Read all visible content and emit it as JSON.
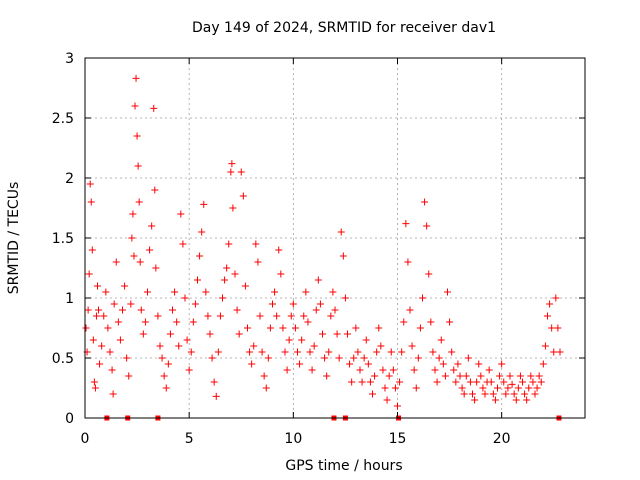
{
  "chart_data": {
    "type": "scatter",
    "title": "Day 149 of 2024, SRMTID for receiver dav1",
    "xlabel": "GPS time / hours",
    "ylabel": "SRMTID / TECUs",
    "xlim": [
      0,
      24
    ],
    "ylim": [
      0,
      3
    ],
    "xticks": [
      0,
      5,
      10,
      15,
      20
    ],
    "xtick_labels": [
      "0",
      "5",
      "10",
      "15",
      "20"
    ],
    "yticks": [
      0,
      0.5,
      1,
      1.5,
      2,
      2.5,
      3
    ],
    "ytick_labels": [
      "0",
      "0.5",
      "1",
      "1.5",
      "2",
      "2.5",
      "3"
    ],
    "grid": true,
    "marker": "+",
    "color": "#ff0000",
    "series": [
      {
        "name": "SRMTID",
        "points": [
          [
            0.05,
            0.75
          ],
          [
            0.1,
            0.55
          ],
          [
            0.15,
            0.9
          ],
          [
            0.2,
            1.2
          ],
          [
            0.25,
            1.95
          ],
          [
            0.3,
            1.8
          ],
          [
            0.35,
            1.4
          ],
          [
            0.4,
            0.65
          ],
          [
            0.45,
            0.3
          ],
          [
            0.5,
            0.25
          ],
          [
            0.55,
            0.85
          ],
          [
            0.6,
            1.1
          ],
          [
            0.65,
            0.9
          ],
          [
            0.7,
            0.45
          ],
          [
            0.8,
            0.6
          ],
          [
            0.9,
            0.85
          ],
          [
            1.0,
            1.05
          ],
          [
            1.1,
            0.75
          ],
          [
            1.2,
            0.55
          ],
          [
            1.3,
            0.4
          ],
          [
            1.35,
            0.2
          ],
          [
            1.4,
            0.95
          ],
          [
            1.5,
            1.3
          ],
          [
            1.6,
            0.8
          ],
          [
            1.7,
            0.65
          ],
          [
            1.8,
            0.9
          ],
          [
            1.9,
            1.1
          ],
          [
            2.0,
            0.5
          ],
          [
            2.1,
            0.35
          ],
          [
            2.2,
            0.95
          ],
          [
            2.25,
            1.5
          ],
          [
            2.3,
            1.7
          ],
          [
            2.35,
            1.35
          ],
          [
            2.4,
            2.6
          ],
          [
            2.45,
            2.83
          ],
          [
            2.5,
            2.35
          ],
          [
            2.55,
            2.1
          ],
          [
            2.6,
            1.8
          ],
          [
            2.65,
            1.3
          ],
          [
            2.7,
            0.9
          ],
          [
            2.8,
            0.7
          ],
          [
            2.9,
            0.8
          ],
          [
            3.0,
            1.05
          ],
          [
            3.1,
            1.4
          ],
          [
            3.2,
            1.6
          ],
          [
            3.3,
            2.58
          ],
          [
            3.35,
            1.9
          ],
          [
            3.4,
            1.25
          ],
          [
            3.5,
            0.85
          ],
          [
            3.6,
            0.6
          ],
          [
            3.7,
            0.5
          ],
          [
            3.8,
            0.35
          ],
          [
            3.9,
            0.25
          ],
          [
            4.0,
            0.45
          ],
          [
            4.1,
            0.7
          ],
          [
            4.2,
            0.9
          ],
          [
            4.3,
            1.05
          ],
          [
            4.4,
            0.8
          ],
          [
            4.5,
            0.6
          ],
          [
            4.6,
            1.7
          ],
          [
            4.7,
            1.45
          ],
          [
            4.8,
            1.0
          ],
          [
            4.9,
            0.65
          ],
          [
            5.0,
            0.4
          ],
          [
            5.1,
            0.55
          ],
          [
            5.2,
            0.8
          ],
          [
            5.3,
            0.95
          ],
          [
            5.4,
            1.15
          ],
          [
            5.5,
            1.35
          ],
          [
            5.6,
            1.55
          ],
          [
            5.7,
            1.78
          ],
          [
            5.8,
            1.05
          ],
          [
            5.9,
            0.85
          ],
          [
            6.0,
            0.7
          ],
          [
            6.1,
            0.5
          ],
          [
            6.2,
            0.3
          ],
          [
            6.3,
            0.18
          ],
          [
            6.4,
            0.55
          ],
          [
            6.5,
            0.85
          ],
          [
            6.6,
            1.0
          ],
          [
            6.7,
            1.15
          ],
          [
            6.8,
            1.25
          ],
          [
            6.9,
            1.45
          ],
          [
            7.0,
            2.05
          ],
          [
            7.05,
            2.12
          ],
          [
            7.1,
            1.75
          ],
          [
            7.2,
            1.2
          ],
          [
            7.3,
            0.9
          ],
          [
            7.4,
            0.7
          ],
          [
            7.5,
            2.05
          ],
          [
            7.6,
            1.85
          ],
          [
            7.7,
            1.1
          ],
          [
            7.8,
            0.75
          ],
          [
            7.9,
            0.55
          ],
          [
            8.0,
            0.45
          ],
          [
            8.1,
            0.6
          ],
          [
            8.2,
            1.45
          ],
          [
            8.3,
            1.3
          ],
          [
            8.4,
            0.85
          ],
          [
            8.5,
            0.55
          ],
          [
            8.6,
            0.35
          ],
          [
            8.7,
            0.25
          ],
          [
            8.8,
            0.5
          ],
          [
            8.9,
            0.75
          ],
          [
            9.0,
            0.95
          ],
          [
            9.1,
            1.05
          ],
          [
            9.2,
            0.85
          ],
          [
            9.3,
            1.4
          ],
          [
            9.4,
            1.2
          ],
          [
            9.5,
            0.75
          ],
          [
            9.6,
            0.55
          ],
          [
            9.7,
            0.4
          ],
          [
            9.8,
            0.65
          ],
          [
            9.9,
            0.85
          ],
          [
            10.0,
            0.95
          ],
          [
            10.1,
            0.75
          ],
          [
            10.2,
            0.55
          ],
          [
            10.3,
            0.45
          ],
          [
            10.4,
            0.65
          ],
          [
            10.5,
            0.85
          ],
          [
            10.6,
            1.05
          ],
          [
            10.7,
            0.8
          ],
          [
            10.8,
            0.55
          ],
          [
            10.9,
            0.4
          ],
          [
            11.0,
            0.6
          ],
          [
            11.1,
            0.9
          ],
          [
            11.2,
            1.15
          ],
          [
            11.3,
            0.95
          ],
          [
            11.4,
            0.7
          ],
          [
            11.5,
            0.5
          ],
          [
            11.6,
            0.35
          ],
          [
            11.7,
            0.55
          ],
          [
            11.8,
            0.85
          ],
          [
            11.9,
            1.05
          ],
          [
            12.0,
            0.9
          ],
          [
            12.1,
            0.7
          ],
          [
            12.2,
            0.5
          ],
          [
            12.3,
            1.55
          ],
          [
            12.4,
            1.35
          ],
          [
            12.5,
            1.0
          ],
          [
            12.6,
            0.7
          ],
          [
            12.7,
            0.45
          ],
          [
            12.8,
            0.3
          ],
          [
            12.9,
            0.5
          ],
          [
            13.0,
            0.75
          ],
          [
            13.1,
            0.55
          ],
          [
            13.2,
            0.4
          ],
          [
            13.3,
            0.3
          ],
          [
            13.4,
            0.5
          ],
          [
            13.5,
            0.65
          ],
          [
            13.6,
            0.45
          ],
          [
            13.7,
            0.3
          ],
          [
            13.8,
            0.2
          ],
          [
            13.9,
            0.35
          ],
          [
            14.0,
            0.55
          ],
          [
            14.1,
            0.75
          ],
          [
            14.2,
            0.6
          ],
          [
            14.3,
            0.4
          ],
          [
            14.4,
            0.25
          ],
          [
            14.5,
            0.15
          ],
          [
            14.6,
            0.35
          ],
          [
            14.7,
            0.55
          ],
          [
            14.8,
            0.4
          ],
          [
            14.9,
            0.25
          ],
          [
            15.0,
            0.1
          ],
          [
            15.1,
            0.3
          ],
          [
            15.2,
            0.55
          ],
          [
            15.3,
            0.8
          ],
          [
            15.4,
            1.62
          ],
          [
            15.5,
            1.3
          ],
          [
            15.6,
            0.9
          ],
          [
            15.7,
            0.6
          ],
          [
            15.8,
            0.4
          ],
          [
            15.9,
            0.25
          ],
          [
            16.0,
            0.5
          ],
          [
            16.1,
            0.75
          ],
          [
            16.2,
            1.0
          ],
          [
            16.3,
            1.8
          ],
          [
            16.4,
            1.6
          ],
          [
            16.5,
            1.2
          ],
          [
            16.6,
            0.8
          ],
          [
            16.7,
            0.55
          ],
          [
            16.8,
            0.4
          ],
          [
            16.9,
            0.3
          ],
          [
            17.0,
            0.5
          ],
          [
            17.1,
            0.65
          ],
          [
            17.2,
            0.45
          ],
          [
            17.3,
            0.35
          ],
          [
            17.4,
            1.05
          ],
          [
            17.5,
            0.8
          ],
          [
            17.6,
            0.55
          ],
          [
            17.7,
            0.4
          ],
          [
            17.8,
            0.3
          ],
          [
            17.9,
            0.45
          ],
          [
            18.0,
            0.35
          ],
          [
            18.1,
            0.25
          ],
          [
            18.2,
            0.2
          ],
          [
            18.3,
            0.35
          ],
          [
            18.4,
            0.5
          ],
          [
            18.5,
            0.3
          ],
          [
            18.6,
            0.2
          ],
          [
            18.7,
            0.15
          ],
          [
            18.8,
            0.3
          ],
          [
            18.9,
            0.45
          ],
          [
            19.0,
            0.35
          ],
          [
            19.1,
            0.25
          ],
          [
            19.2,
            0.2
          ],
          [
            19.3,
            0.3
          ],
          [
            19.4,
            0.4
          ],
          [
            19.5,
            0.3
          ],
          [
            19.6,
            0.2
          ],
          [
            19.7,
            0.15
          ],
          [
            19.8,
            0.25
          ],
          [
            19.9,
            0.35
          ],
          [
            20.0,
            0.45
          ],
          [
            20.1,
            0.3
          ],
          [
            20.2,
            0.2
          ],
          [
            20.3,
            0.25
          ],
          [
            20.4,
            0.35
          ],
          [
            20.5,
            0.28
          ],
          [
            20.6,
            0.2
          ],
          [
            20.7,
            0.15
          ],
          [
            20.8,
            0.25
          ],
          [
            20.9,
            0.35
          ],
          [
            21.0,
            0.3
          ],
          [
            21.1,
            0.2
          ],
          [
            21.2,
            0.15
          ],
          [
            21.3,
            0.25
          ],
          [
            21.4,
            0.35
          ],
          [
            21.5,
            0.3
          ],
          [
            21.6,
            0.2
          ],
          [
            21.7,
            0.25
          ],
          [
            21.8,
            0.35
          ],
          [
            21.9,
            0.3
          ],
          [
            22.0,
            0.45
          ],
          [
            22.1,
            0.6
          ],
          [
            22.2,
            0.85
          ],
          [
            22.3,
            0.95
          ],
          [
            22.4,
            0.75
          ],
          [
            22.5,
            0.55
          ],
          [
            22.6,
            1.0
          ],
          [
            22.7,
            0.75
          ],
          [
            22.8,
            0.55
          ]
        ]
      }
    ],
    "baseline_marks_x": [
      1.05,
      2.05,
      3.5,
      11.95,
      12.5,
      15.05,
      22.75
    ]
  }
}
